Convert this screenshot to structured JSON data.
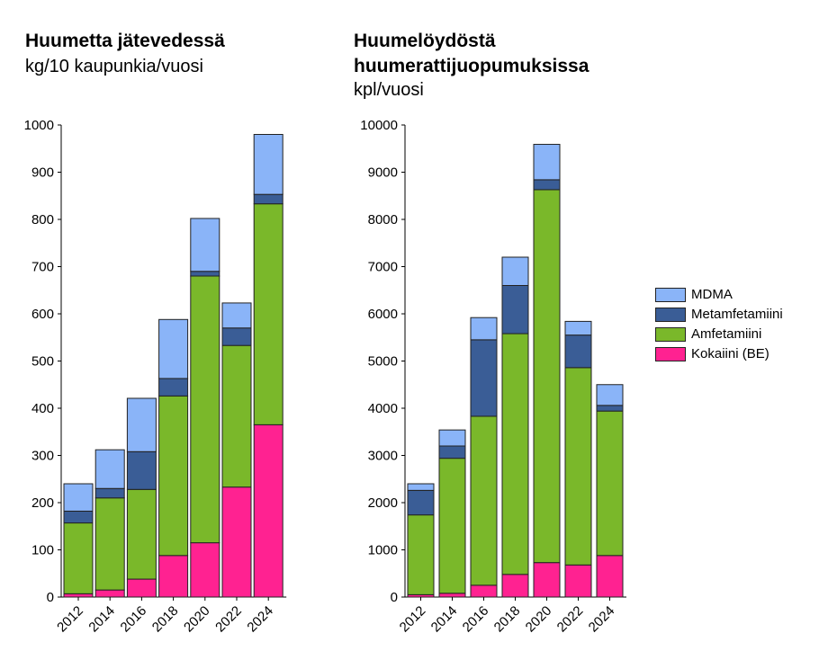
{
  "colors": {
    "MDMA": "#8ab4f8",
    "Metamfetamiini": "#3a5d96",
    "Amfetamiini": "#7ab82a",
    "Kokaiini (BE)": "#ff2291"
  },
  "legend": [
    "MDMA",
    "Metamfetamiini",
    "Amfetamiini",
    "Kokaiini (BE)"
  ],
  "chart_data": [
    {
      "type": "bar",
      "stacked": true,
      "title": "Huumetta jätevedessä",
      "subtitle": "kg/10 kaupunkia/vuosi",
      "categories": [
        "2012",
        "2014",
        "2016",
        "2018",
        "2020",
        "2022",
        "2024"
      ],
      "ylim": [
        0,
        1000
      ],
      "yticks": [
        "0",
        "100",
        "200",
        "300",
        "400",
        "500",
        "600",
        "700",
        "800",
        "900",
        "1000"
      ],
      "series": [
        {
          "name": "Kokaiini (BE)",
          "values": [
            7,
            15,
            38,
            88,
            115,
            233,
            365
          ]
        },
        {
          "name": "Amfetamiini",
          "values": [
            150,
            195,
            190,
            338,
            565,
            300,
            468
          ]
        },
        {
          "name": "Metamfetamiini",
          "values": [
            25,
            20,
            80,
            37,
            10,
            37,
            20
          ]
        },
        {
          "name": "MDMA",
          "values": [
            58,
            82,
            113,
            125,
            112,
            53,
            127
          ]
        }
      ]
    },
    {
      "type": "bar",
      "stacked": true,
      "title": "Huumelöydöstä huumerattijuopumuksissa",
      "title_lines": [
        "Huumelöydöstä",
        "huumerattijuopumuksissa"
      ],
      "subtitle": "kpl/vuosi",
      "categories": [
        "2012",
        "2014",
        "2016",
        "2018",
        "2020",
        "2022",
        "2024"
      ],
      "ylim": [
        0,
        10000
      ],
      "yticks": [
        "0",
        "1000",
        "2000",
        "3000",
        "4000",
        "5000",
        "6000",
        "7000",
        "8000",
        "9000",
        "10000"
      ],
      "series": [
        {
          "name": "Kokaiini (BE)",
          "values": [
            50,
            80,
            250,
            480,
            730,
            680,
            880
          ]
        },
        {
          "name": "Amfetamiini",
          "values": [
            1690,
            2860,
            3580,
            5100,
            7900,
            4180,
            3060
          ]
        },
        {
          "name": "Metamfetamiini",
          "values": [
            520,
            260,
            1620,
            1020,
            210,
            690,
            120
          ]
        },
        {
          "name": "MDMA",
          "values": [
            140,
            340,
            470,
            600,
            750,
            290,
            440
          ]
        }
      ]
    }
  ]
}
